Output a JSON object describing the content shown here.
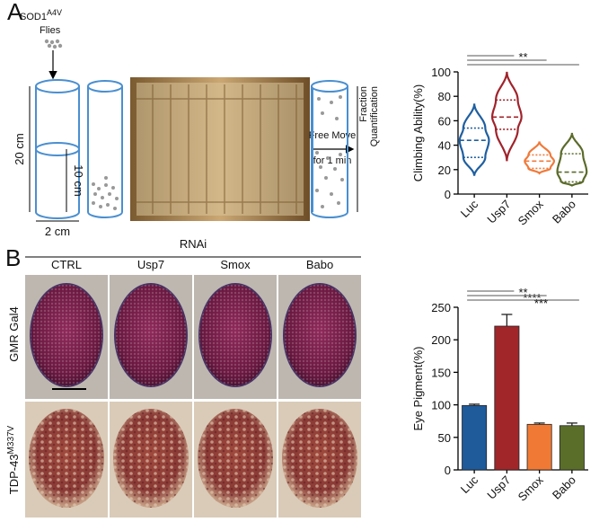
{
  "panel_a": {
    "label": "A",
    "genotype": "SOD1",
    "genotype_sup": "A4V",
    "flies": "Flies",
    "height_full": "20 cm",
    "height_half": "10 cm",
    "diameter": "2 cm",
    "move_1": "Free Move",
    "move_2": "for 1 min",
    "fraction": "Fraction",
    "quantification": "Quantification"
  },
  "panel_b": {
    "label": "B",
    "rnai": "RNAi",
    "columns": [
      "CTRL",
      "Usp7",
      "Smox",
      "Babo"
    ],
    "row_1": "GMR Gal4",
    "row_2": "TDP-43",
    "row_2_sup": "M337V"
  },
  "chart_data": [
    {
      "type": "violin",
      "y_label": "Climbing Ability(%)",
      "categories": [
        "Luc",
        "Usp7",
        "Smox",
        "Babo"
      ],
      "colors": [
        "#1f5fa0",
        "#a0232b",
        "#f07a3a",
        "#5b6b2a"
      ],
      "min": [
        15,
        27,
        17,
        7
      ],
      "q1": [
        30,
        53,
        21,
        10
      ],
      "median": [
        44,
        63,
        27,
        18
      ],
      "q3": [
        54,
        77,
        32,
        33
      ],
      "max": [
        74,
        100,
        43,
        50
      ],
      "ylim": [
        0,
        100
      ],
      "yticks": [
        0,
        20,
        40,
        60,
        80,
        100
      ],
      "significance": [
        "**"
      ]
    },
    {
      "type": "bar",
      "y_label": "Eye Pigment(%)",
      "categories": [
        "Luc",
        "Usp7",
        "Smox",
        "Babo"
      ],
      "colors": [
        "#1f5a9a",
        "#a0262a",
        "#f07a35",
        "#5a6e2a"
      ],
      "values": [
        99,
        221,
        70,
        68
      ],
      "errors": [
        2,
        18,
        2,
        4
      ],
      "ylim": [
        0,
        250
      ],
      "yticks": [
        0,
        50,
        100,
        150,
        200,
        250
      ],
      "significance": [
        "**",
        "****",
        "***"
      ]
    }
  ]
}
